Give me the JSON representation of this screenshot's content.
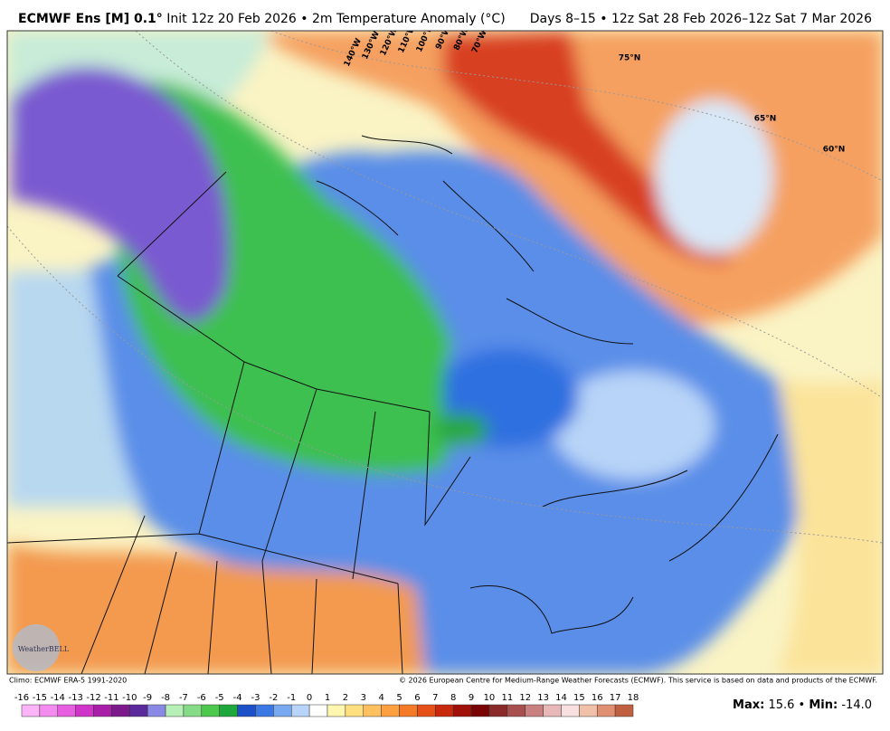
{
  "header": {
    "title_bold": "ECMWF Ens [M] 0.1°",
    "title_rest": "Init 12z 20 Feb 2026 • 2m Temperature Anomaly (°C)",
    "valid": "Days 8–15 • 12z Sat 28 Feb 2026–12z Sat 7 Mar 2026"
  },
  "map": {
    "longitude_labels": [
      "140°W",
      "130°W",
      "120°W",
      "110°W",
      "100°W",
      "90°W",
      "80°W",
      "70°W"
    ],
    "latitude_labels": [
      "75°N",
      "65°N",
      "60°N"
    ],
    "logo": "WeatherBELL"
  },
  "footer": {
    "climo": "Climo: ECMWF ERA-5 1991-2020",
    "copyright": "© 2026 European Centre for Medium-Range Weather Forecasts (ECMWF). This service is based on data and products of the ECMWF."
  },
  "colorbar": {
    "ticks": [
      -16,
      -15,
      -14,
      -13,
      -12,
      -11,
      -10,
      -9,
      -8,
      -7,
      -6,
      -5,
      -4,
      -3,
      -2,
      -1,
      0,
      1,
      2,
      3,
      4,
      5,
      6,
      7,
      8,
      9,
      10,
      11,
      12,
      13,
      14,
      15,
      16,
      17,
      18
    ],
    "colors": [
      "#fbb4f8",
      "#f48cf0",
      "#e85ee0",
      "#d033c8",
      "#a81ea8",
      "#7c1a8c",
      "#5a2a9c",
      "#8a8ae6",
      "#b6f0b6",
      "#86dc86",
      "#4cc84c",
      "#1ea83c",
      "#1c50c8",
      "#3c78e4",
      "#78a8f0",
      "#b8d4f8",
      "#ffffff",
      "#fff6b0",
      "#ffe080",
      "#ffc060",
      "#ffa040",
      "#f57a28",
      "#e65018",
      "#c8280c",
      "#a01008",
      "#780404",
      "#8a2a2a",
      "#a85050",
      "#c88080",
      "#e8b8b8",
      "#f8e0e0",
      "#f0c0a8",
      "#e09070",
      "#c06040"
    ]
  },
  "stats": {
    "max_label": "Max:",
    "max_value": "15.6",
    "separator": "•",
    "min_label": "Min:",
    "min_value": "-14.0"
  }
}
